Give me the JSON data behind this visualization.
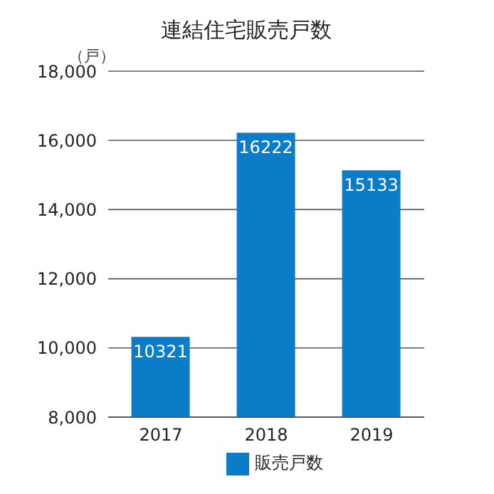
{
  "chart_data": {
    "type": "bar",
    "title": "連結住宅販売戸数",
    "ylabel": "（戸）",
    "categories": [
      "2017",
      "2018",
      "2019"
    ],
    "series": [
      {
        "name": "販売戸数",
        "color": "#0a7cc8",
        "values": [
          10321,
          16222,
          15133
        ]
      }
    ],
    "ylim": [
      8000,
      18000
    ],
    "yticks": [
      {
        "value": 8000,
        "label": "8,000"
      },
      {
        "value": 10000,
        "label": "10,000"
      },
      {
        "value": 12000,
        "label": "12,000"
      },
      {
        "value": 14000,
        "label": "14,000"
      },
      {
        "value": 16000,
        "label": "16,000"
      },
      {
        "value": 18000,
        "label": "18,000"
      }
    ],
    "grid": "y",
    "legend": "bottom",
    "data_labels": true
  }
}
